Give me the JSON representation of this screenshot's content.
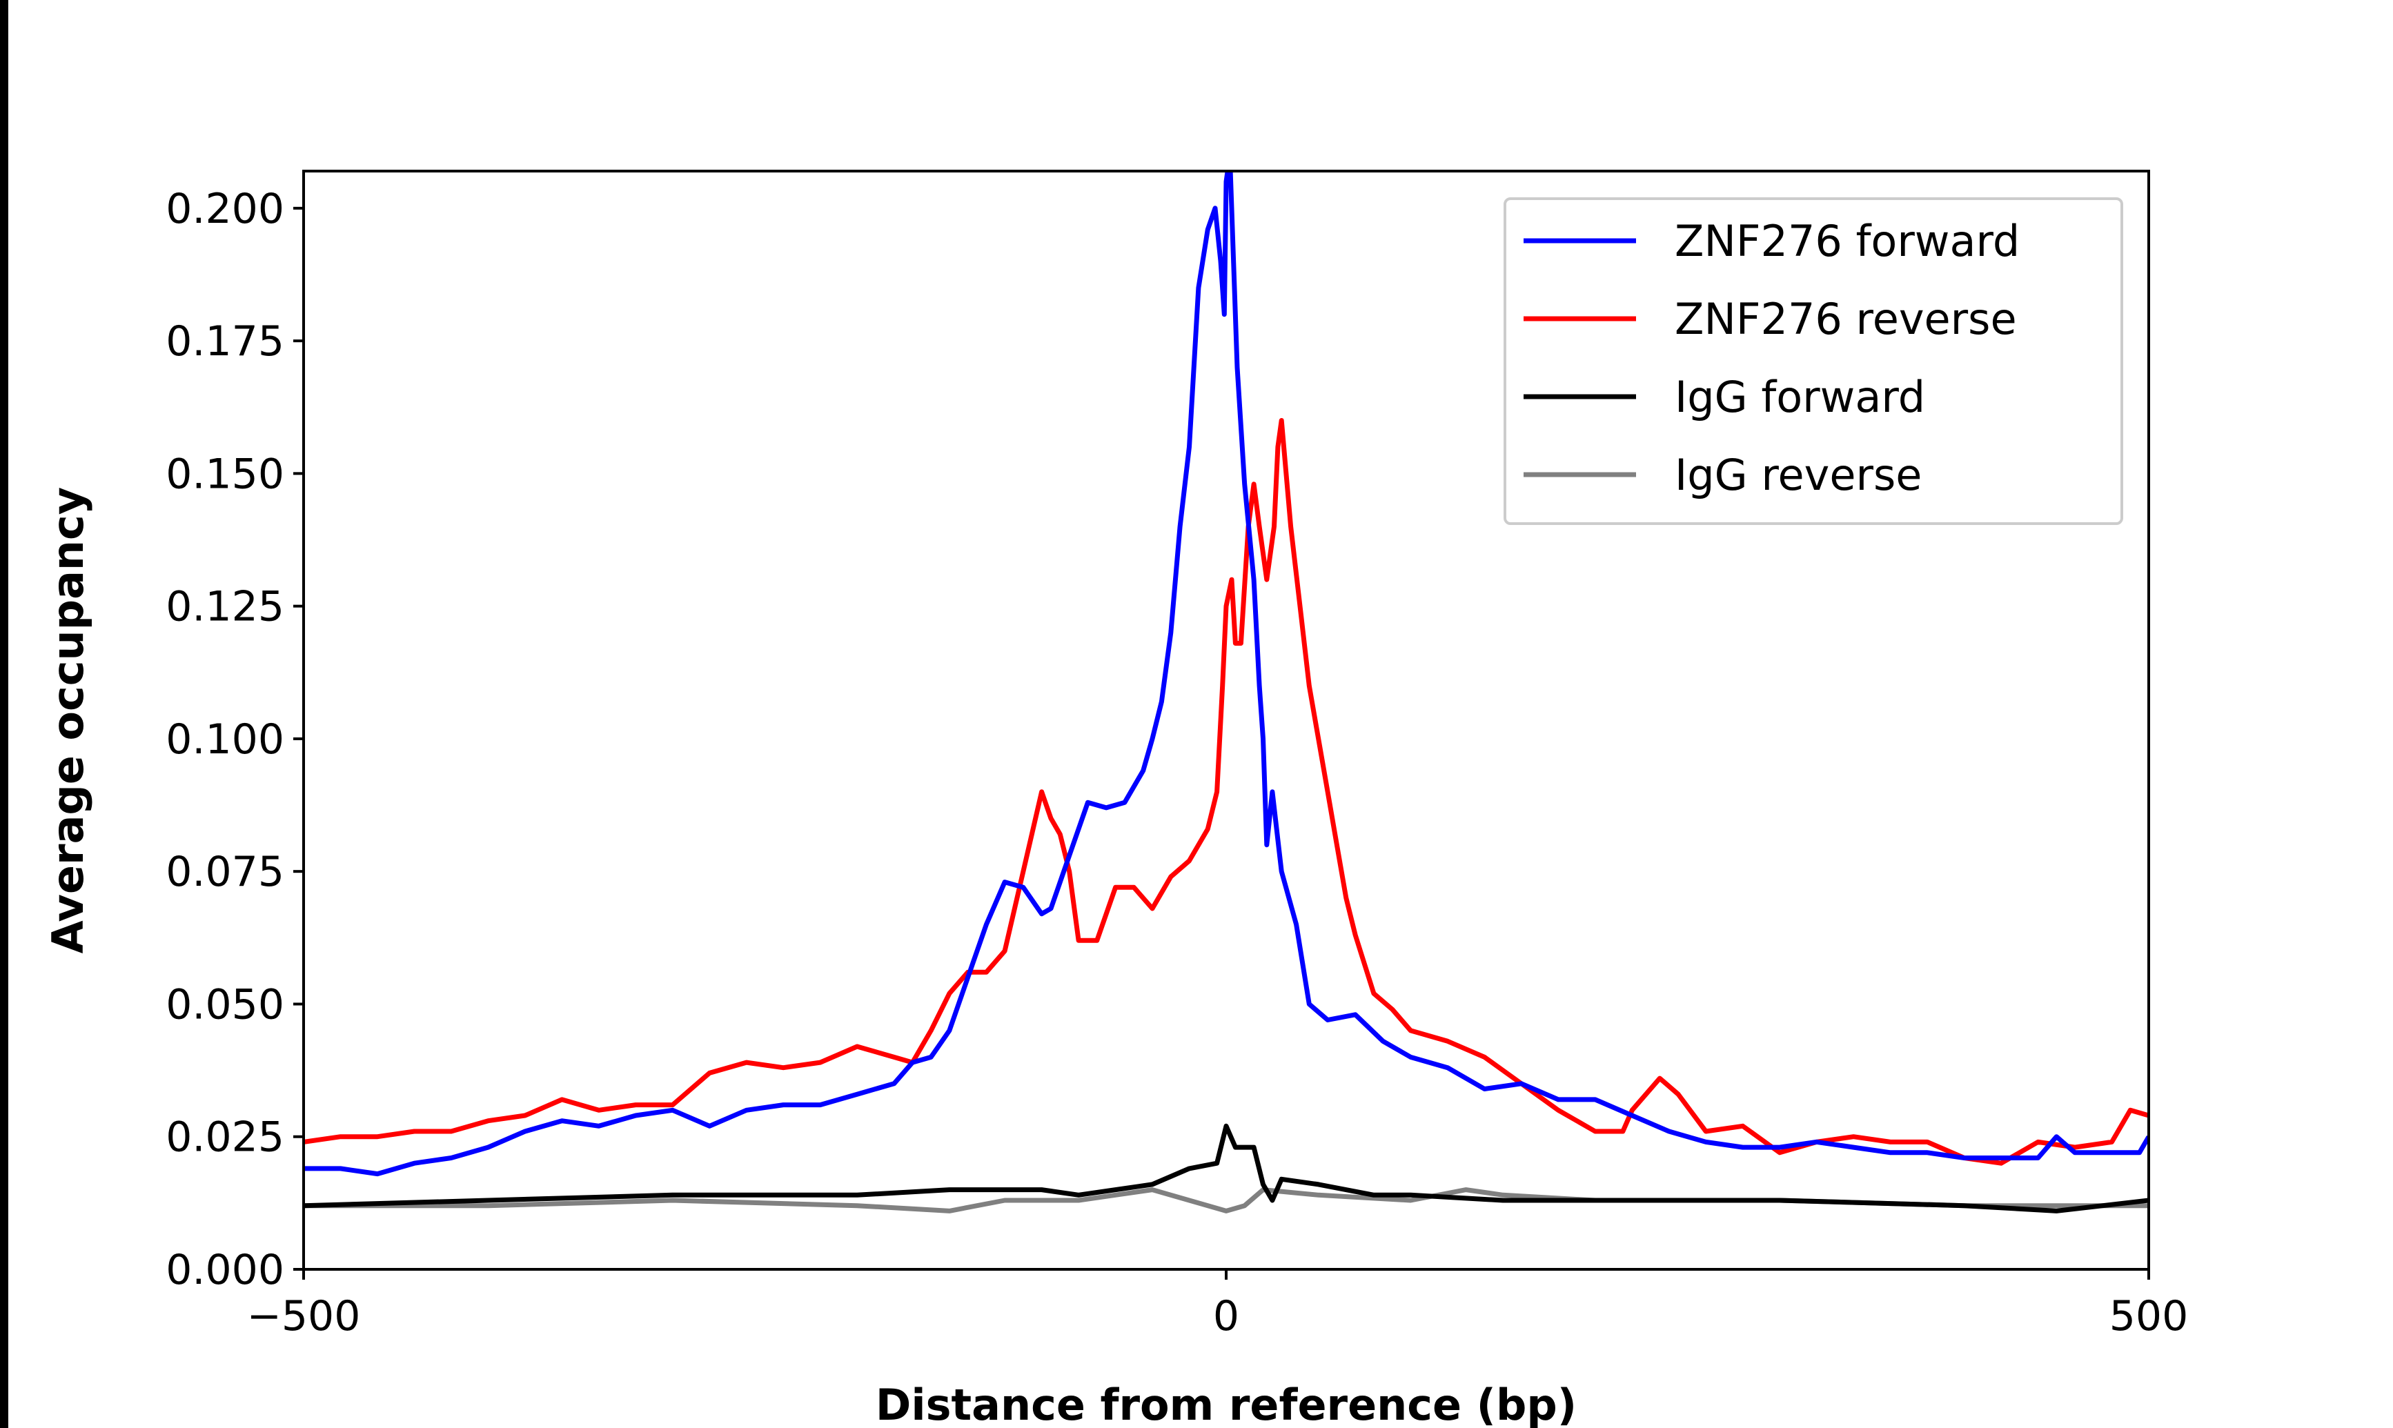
{
  "chart_data": {
    "type": "line",
    "title": "",
    "xlabel": "Distance from reference (bp)",
    "ylabel": "Average occupancy",
    "xlim": [
      -500,
      500
    ],
    "ylim": [
      0,
      0.207
    ],
    "xticks": [
      "−500",
      "0",
      "500"
    ],
    "xtick_values": [
      -500,
      0,
      500
    ],
    "yticks": [
      "0.000",
      "0.025",
      "0.050",
      "0.075",
      "0.100",
      "0.125",
      "0.150",
      "0.175",
      "0.200"
    ],
    "ytick_values": [
      0,
      0.025,
      0.05,
      0.075,
      0.1,
      0.125,
      0.15,
      0.175,
      0.2
    ],
    "grid": false,
    "legend_position": "top-right",
    "series": [
      {
        "name": "ZNF276 forward",
        "color": "#0000ff",
        "x": [
          -500,
          -480,
          -460,
          -440,
          -420,
          -400,
          -380,
          -360,
          -340,
          -320,
          -300,
          -280,
          -260,
          -240,
          -220,
          -200,
          -180,
          -170,
          -160,
          -150,
          -140,
          -130,
          -120,
          -110,
          -100,
          -95,
          -85,
          -75,
          -65,
          -55,
          -45,
          -40,
          -35,
          -30,
          -25,
          -20,
          -15,
          -10,
          -6,
          -3,
          -1,
          0,
          2,
          6,
          10,
          15,
          18,
          20,
          22,
          25,
          30,
          38,
          45,
          55,
          70,
          85,
          100,
          120,
          140,
          160,
          180,
          200,
          220,
          240,
          260,
          280,
          300,
          320,
          340,
          360,
          380,
          400,
          420,
          440,
          450,
          460,
          480,
          495,
          500
        ],
        "y": [
          0.019,
          0.019,
          0.018,
          0.02,
          0.021,
          0.023,
          0.026,
          0.028,
          0.027,
          0.029,
          0.03,
          0.027,
          0.03,
          0.031,
          0.031,
          0.033,
          0.035,
          0.039,
          0.04,
          0.045,
          0.055,
          0.065,
          0.073,
          0.072,
          0.067,
          0.068,
          0.078,
          0.088,
          0.087,
          0.088,
          0.094,
          0.1,
          0.107,
          0.12,
          0.14,
          0.155,
          0.185,
          0.196,
          0.2,
          0.19,
          0.18,
          0.205,
          0.21,
          0.17,
          0.148,
          0.13,
          0.11,
          0.1,
          0.08,
          0.09,
          0.075,
          0.065,
          0.05,
          0.047,
          0.048,
          0.043,
          0.04,
          0.038,
          0.034,
          0.035,
          0.032,
          0.032,
          0.029,
          0.026,
          0.024,
          0.023,
          0.023,
          0.024,
          0.023,
          0.022,
          0.022,
          0.021,
          0.021,
          0.021,
          0.025,
          0.022,
          0.022,
          0.022,
          0.025
        ]
      },
      {
        "name": "ZNF276 reverse",
        "color": "#ff0000",
        "x": [
          -500,
          -480,
          -460,
          -440,
          -420,
          -400,
          -380,
          -360,
          -340,
          -320,
          -300,
          -280,
          -260,
          -240,
          -220,
          -200,
          -180,
          -170,
          -160,
          -150,
          -140,
          -130,
          -120,
          -110,
          -100,
          -95,
          -90,
          -85,
          -80,
          -70,
          -60,
          -50,
          -40,
          -30,
          -20,
          -10,
          -5,
          -2,
          0,
          3,
          5,
          8,
          12,
          15,
          18,
          22,
          26,
          28,
          30,
          35,
          40,
          45,
          50,
          55,
          60,
          65,
          70,
          80,
          90,
          100,
          120,
          140,
          160,
          180,
          200,
          215,
          220,
          235,
          245,
          260,
          280,
          300,
          320,
          340,
          360,
          380,
          400,
          420,
          440,
          460,
          480,
          490,
          500
        ],
        "y": [
          0.024,
          0.025,
          0.025,
          0.026,
          0.026,
          0.028,
          0.029,
          0.032,
          0.03,
          0.031,
          0.031,
          0.037,
          0.039,
          0.038,
          0.039,
          0.042,
          0.04,
          0.039,
          0.045,
          0.052,
          0.056,
          0.056,
          0.06,
          0.075,
          0.09,
          0.085,
          0.082,
          0.075,
          0.062,
          0.062,
          0.072,
          0.072,
          0.068,
          0.074,
          0.077,
          0.083,
          0.09,
          0.11,
          0.125,
          0.13,
          0.118,
          0.118,
          0.14,
          0.148,
          0.14,
          0.13,
          0.14,
          0.155,
          0.16,
          0.14,
          0.125,
          0.11,
          0.1,
          0.09,
          0.08,
          0.07,
          0.063,
          0.052,
          0.049,
          0.045,
          0.043,
          0.04,
          0.035,
          0.03,
          0.026,
          0.026,
          0.03,
          0.036,
          0.033,
          0.026,
          0.027,
          0.022,
          0.024,
          0.025,
          0.024,
          0.024,
          0.021,
          0.02,
          0.024,
          0.023,
          0.024,
          0.03,
          0.029
        ]
      },
      {
        "name": "IgG forward",
        "color": "#000000",
        "x": [
          -500,
          -400,
          -300,
          -200,
          -150,
          -100,
          -80,
          -60,
          -40,
          -20,
          -5,
          0,
          5,
          15,
          20,
          25,
          30,
          50,
          80,
          100,
          150,
          200,
          300,
          400,
          450,
          500
        ],
        "y": [
          0.012,
          0.013,
          0.014,
          0.014,
          0.015,
          0.015,
          0.014,
          0.015,
          0.016,
          0.019,
          0.02,
          0.027,
          0.023,
          0.023,
          0.016,
          0.013,
          0.017,
          0.016,
          0.014,
          0.014,
          0.013,
          0.013,
          0.013,
          0.012,
          0.011,
          0.013
        ]
      },
      {
        "name": "IgG reverse",
        "color": "#808080",
        "x": [
          -500,
          -400,
          -300,
          -200,
          -150,
          -120,
          -80,
          -60,
          -40,
          -20,
          0,
          10,
          20,
          50,
          100,
          130,
          150,
          200,
          300,
          400,
          500
        ],
        "y": [
          0.012,
          0.012,
          0.013,
          0.012,
          0.011,
          0.013,
          0.013,
          0.014,
          0.015,
          0.013,
          0.011,
          0.012,
          0.015,
          0.014,
          0.013,
          0.015,
          0.014,
          0.013,
          0.013,
          0.012,
          0.012
        ]
      }
    ]
  }
}
